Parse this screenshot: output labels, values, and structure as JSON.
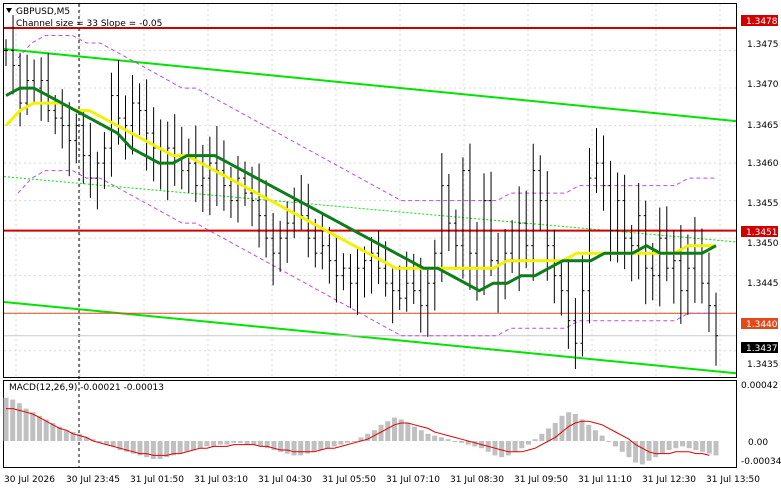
{
  "header": {
    "symbol": "GBPUSD,M5",
    "indicator": "Channel size = 33 Slope = -0.05"
  },
  "macd": {
    "label": "MACD(12,26,9) -0.00021 -0.00013",
    "ticks": [
      "0.00042",
      "0.00",
      "-0.00034"
    ],
    "hist": [
      24,
      23,
      21,
      18,
      16,
      14,
      12,
      10,
      8,
      6,
      5,
      4,
      2,
      1,
      -1,
      -2,
      -3,
      -5,
      -6,
      -7,
      -8,
      -9,
      -10,
      -10,
      -9,
      -8,
      -7,
      -6,
      -5,
      -4,
      -3,
      -3,
      -2,
      -2,
      -1,
      -1,
      -2,
      -2,
      -3,
      -4,
      -5,
      -6,
      -7,
      -8,
      -8,
      -7,
      -6,
      -5,
      -4,
      -3,
      -2,
      -1,
      0,
      2,
      4,
      6,
      9,
      11,
      13,
      12,
      10,
      8,
      6,
      4,
      3,
      2,
      1,
      0,
      -1,
      -2,
      -3,
      -4,
      -6,
      -8,
      -9,
      -8,
      -6,
      -4,
      -2,
      1,
      4,
      7,
      10,
      14,
      16,
      15,
      12,
      9,
      6,
      3,
      0,
      -3,
      -6,
      -9,
      -12,
      -13,
      -11,
      -9,
      -7,
      -5,
      -4,
      -3,
      -4,
      -5,
      -6,
      -7,
      -8
    ],
    "signal": [
      18,
      18,
      17,
      16,
      15,
      13,
      11,
      9,
      7,
      6,
      4,
      3,
      2,
      0,
      -1,
      -2,
      -3,
      -4,
      -5,
      -6,
      -7,
      -7,
      -8,
      -8,
      -8,
      -7,
      -7,
      -6,
      -5,
      -4,
      -4,
      -3,
      -3,
      -3,
      -2,
      -2,
      -2,
      -2,
      -3,
      -3,
      -4,
      -5,
      -5,
      -6,
      -6,
      -6,
      -6,
      -5,
      -4,
      -4,
      -3,
      -2,
      -1,
      0,
      1,
      3,
      5,
      7,
      9,
      10,
      10,
      9,
      8,
      7,
      5,
      4,
      3,
      2,
      1,
      0,
      -1,
      -2,
      -3,
      -4,
      -5,
      -6,
      -6,
      -6,
      -5,
      -4,
      -2,
      0,
      2,
      5,
      8,
      10,
      11,
      11,
      10,
      9,
      7,
      5,
      3,
      1,
      -2,
      -4,
      -6,
      -7,
      -7,
      -7,
      -6,
      -6,
      -6,
      -7,
      -7,
      -8
    ]
  },
  "price_axis": {
    "ticks": [
      "1.3475",
      "1.3470",
      "1.3465",
      "1.3460",
      "1.3455",
      "1.3450",
      "1.3445",
      "1.3435"
    ],
    "red_high": "1.3478",
    "red_mid": "1.3451",
    "ask": "1.3440",
    "bid": "1.3437"
  },
  "time_axis": {
    "ticks": [
      "30 Jul 2026",
      "30 Jul 23:45",
      "31 Jul 01:50",
      "31 Jul 03:10",
      "31 Jul 04:30",
      "31 Jul 05:50",
      "31 Jul 07:10",
      "31 Jul 08:30",
      "31 Jul 09:50",
      "31 Jul 11:10",
      "31 Jul 12:30",
      "31 Jul 13:50"
    ]
  },
  "colors": {
    "channel": "#00e400",
    "ma_green": "#0c7d1a",
    "ma_yellow": "#f2f200",
    "envelope": "#b84fe0",
    "level_red": "#d00000",
    "macd_hist": "#c0c0c0",
    "macd_signal": "#e00000",
    "bid_box": "#000000",
    "ask_box": "#e04a1a"
  },
  "chart_data": {
    "type": "line",
    "title": "GBPUSD,M5",
    "ylim": [
      1.34315,
      1.34812
    ],
    "levels": {
      "resistance": 1.3478,
      "mid": 1.3451,
      "ask": 1.344,
      "bid": 1.3437
    },
    "channel": {
      "upper": [
        1.34752,
        1.34656
      ],
      "lower": [
        1.34415,
        1.3432
      ]
    },
    "channel_mid": [
      1.34582,
      1.34495
    ],
    "close": [
      1.3475,
      1.3473,
      1.3468,
      1.3471,
      1.347,
      1.3471,
      1.3467,
      1.3466,
      1.3465,
      1.3463,
      1.3465,
      1.3461,
      1.3458,
      1.346,
      1.3462,
      1.3469,
      1.3466,
      1.3465,
      1.3468,
      1.3467,
      1.3464,
      1.3462,
      1.346,
      1.3462,
      1.3461,
      1.3459,
      1.346,
      1.3457,
      1.3458,
      1.346,
      1.3459,
      1.3457,
      1.3455,
      1.3458,
      1.3456,
      1.3455,
      1.3453,
      1.345,
      1.3448,
      1.345,
      1.3452,
      1.3455,
      1.3453,
      1.345,
      1.3448,
      1.3449,
      1.3447,
      1.3445,
      1.3446,
      1.3444,
      1.3446,
      1.3447,
      1.3448,
      1.3446,
      1.3444,
      1.3443,
      1.3442,
      1.3444,
      1.3443,
      1.3441,
      1.3444,
      1.3448,
      1.3457,
      1.3452,
      1.3449,
      1.3459,
      1.3448,
      1.3446,
      1.3455,
      1.3447,
      1.3444,
      1.3448,
      1.3447,
      1.3452,
      1.3449,
      1.3459,
      1.3455,
      1.3449,
      1.3445,
      1.3443,
      1.3439,
      1.3436,
      1.3443,
      1.3458,
      1.346,
      1.3457,
      1.3451,
      1.3455,
      1.345,
      1.3449,
      1.3453,
      1.3446,
      1.3445,
      1.345,
      1.3446,
      1.3447,
      1.3443,
      1.3446,
      1.3448,
      1.3444,
      1.3441,
      1.3437
    ],
    "ma_fast": [
      1.3469,
      1.347,
      1.347,
      1.3469,
      1.3468,
      1.3467,
      1.3466,
      1.3465,
      1.3464,
      1.3462,
      1.3461,
      1.346,
      1.346,
      1.3461,
      1.3461,
      1.3461,
      1.346,
      1.3459,
      1.3458,
      1.3457,
      1.3456,
      1.3455,
      1.3454,
      1.3453,
      1.3452,
      1.3451,
      1.345,
      1.3449,
      1.3448,
      1.3447,
      1.3446,
      1.3446,
      1.3445,
      1.3444,
      1.3443,
      1.3444,
      1.3444,
      1.3445,
      1.3445,
      1.3446,
      1.3447,
      1.3447,
      1.3447,
      1.3448,
      1.3448,
      1.3448,
      1.3449,
      1.3448,
      1.3448,
      1.3448,
      1.3448,
      1.3449
    ],
    "ma_slow": [
      1.3465,
      1.3467,
      1.3468,
      1.3468,
      1.3468,
      1.3467,
      1.3467,
      1.3466,
      1.3465,
      1.3464,
      1.3463,
      1.3462,
      1.3461,
      1.3461,
      1.346,
      1.3459,
      1.3458,
      1.3457,
      1.3456,
      1.3455,
      1.3454,
      1.3453,
      1.3452,
      1.3451,
      1.345,
      1.3449,
      1.3448,
      1.3447,
      1.3446,
      1.3446,
      1.3446,
      1.3446,
      1.3446,
      1.3446,
      1.3446,
      1.3446,
      1.3447,
      1.3447,
      1.3447,
      1.3447,
      1.3447,
      1.3448,
      1.3448,
      1.3448,
      1.3448,
      1.3448,
      1.3448,
      1.3448,
      1.3448,
      1.3449,
      1.3449,
      1.3449
    ]
  }
}
